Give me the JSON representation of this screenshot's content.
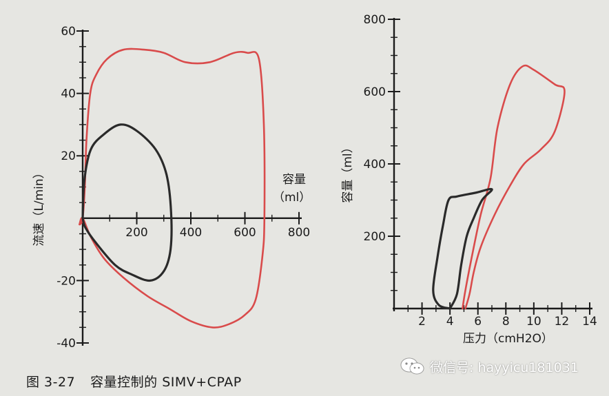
{
  "caption": {
    "figure_number": "图 3-27",
    "title": "容量控制的 SIMV+CPAP"
  },
  "watermark": {
    "text": "微信号: hayyicu181031",
    "icon": "wechat-icon"
  },
  "colors": {
    "spontaneous_loop": "#2a2a2a",
    "mandatory_loop": "#d94b4b",
    "axis": "#1b1b1b",
    "background": "#e6e6e2"
  },
  "chart_data": [
    {
      "type": "line",
      "chart_kind": "flow-volume loop",
      "xlabel": "容量",
      "xlabel_unit": "（ml）",
      "ylabel": "流速（L/min）",
      "xlim": [
        0,
        800
      ],
      "ylim": [
        -40,
        60
      ],
      "x_ticks": [
        200,
        400,
        600,
        800
      ],
      "y_ticks": [
        60,
        40,
        20,
        -20,
        -40
      ],
      "grid": false,
      "series": [
        {
          "color": "#d94b4b",
          "points": [
            [
              -10,
              -2
            ],
            [
              0,
              0
            ],
            [
              8,
              10
            ],
            [
              14,
              25
            ],
            [
              28,
              40
            ],
            [
              50,
              46
            ],
            [
              90,
              51
            ],
            [
              150,
              54
            ],
            [
              230,
              54
            ],
            [
              300,
              53
            ],
            [
              380,
              50
            ],
            [
              470,
              50
            ],
            [
              560,
              53
            ],
            [
              610,
              53
            ],
            [
              652,
              51
            ],
            [
              670,
              30
            ],
            [
              672,
              0
            ],
            [
              665,
              -12
            ],
            [
              640,
              -26
            ],
            [
              600,
              -31
            ],
            [
              540,
              -34
            ],
            [
              480,
              -35
            ],
            [
              400,
              -33
            ],
            [
              320,
              -29
            ],
            [
              240,
              -25
            ],
            [
              150,
              -19
            ],
            [
              80,
              -13
            ],
            [
              30,
              -6
            ],
            [
              0,
              0
            ],
            [
              -12,
              -2
            ]
          ]
        },
        {
          "color": "#2a2a2a",
          "points": [
            [
              0,
              0
            ],
            [
              6,
              12
            ],
            [
              30,
              22
            ],
            [
              80,
              27
            ],
            [
              140,
              30
            ],
            [
              200,
              28
            ],
            [
              270,
              22
            ],
            [
              310,
              14
            ],
            [
              327,
              2
            ],
            [
              325,
              -10
            ],
            [
              300,
              -17
            ],
            [
              250,
              -20
            ],
            [
              180,
              -18
            ],
            [
              120,
              -15
            ],
            [
              50,
              -8
            ],
            [
              10,
              -3
            ],
            [
              0,
              0
            ]
          ]
        }
      ]
    },
    {
      "type": "line",
      "chart_kind": "pressure-volume loop",
      "xlabel": "压力（cmH2O）",
      "ylabel": "容量（ml）",
      "xlim": [
        0,
        14
      ],
      "ylim": [
        0,
        800
      ],
      "x_ticks": [
        2,
        4,
        6,
        8,
        10,
        12,
        14
      ],
      "y_ticks": [
        200,
        400,
        600,
        800
      ],
      "grid": false,
      "series": [
        {
          "color": "#d94b4b",
          "points": [
            [
              4.9,
              0
            ],
            [
              5.1,
              50
            ],
            [
              5.6,
              150
            ],
            [
              6.2,
              260
            ],
            [
              6.9,
              360
            ],
            [
              7.4,
              500
            ],
            [
              8.3,
              620
            ],
            [
              9.2,
              670
            ],
            [
              10,
              660
            ],
            [
              11.5,
              620
            ],
            [
              12.2,
              600
            ],
            [
              11.5,
              490
            ],
            [
              10.5,
              440
            ],
            [
              9.3,
              400
            ],
            [
              8.3,
              340
            ],
            [
              7.2,
              260
            ],
            [
              6.2,
              170
            ],
            [
              5.7,
              100
            ],
            [
              5.4,
              40
            ],
            [
              5.1,
              0
            ]
          ]
        },
        {
          "color": "#2a2a2a",
          "points": [
            [
              4.0,
              0
            ],
            [
              4.5,
              40
            ],
            [
              4.8,
              120
            ],
            [
              5.2,
              200
            ],
            [
              5.7,
              250
            ],
            [
              6.3,
              300
            ],
            [
              7.0,
              330
            ],
            [
              5.8,
              320
            ],
            [
              4.5,
              310
            ],
            [
              3.9,
              300
            ],
            [
              3.5,
              230
            ],
            [
              3.1,
              140
            ],
            [
              2.8,
              50
            ],
            [
              3.2,
              10
            ],
            [
              4.0,
              0
            ]
          ]
        }
      ]
    }
  ]
}
